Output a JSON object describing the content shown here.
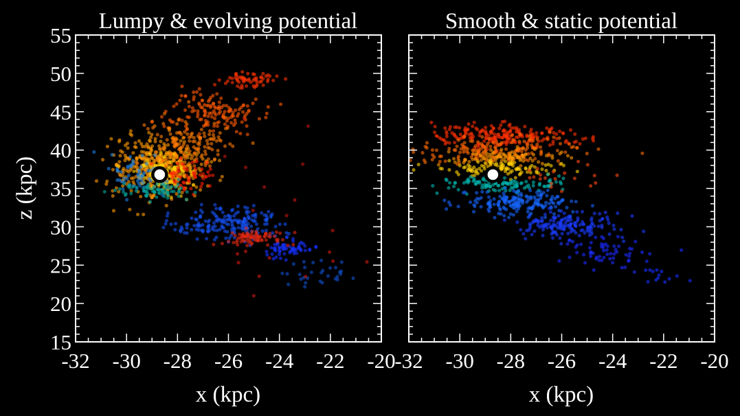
{
  "chart_data": [
    {
      "type": "scatter",
      "title": "Lumpy & evolving potential",
      "xlabel": "x (kpc)",
      "ylabel": "z (kpc)",
      "xlim": [
        -32,
        -20
      ],
      "ylim": [
        15,
        55
      ],
      "x_ticks": [
        "-32",
        "-30",
        "-28",
        "-26",
        "-24",
        "-22",
        "-20"
      ],
      "y_ticks": [
        "15",
        "20",
        "25",
        "30",
        "35",
        "40",
        "45",
        "50",
        "55"
      ],
      "progenitor": {
        "x": -28.7,
        "z": 36.8
      },
      "clumps": [
        {
          "color": "#ff9a00",
          "cx": -28.8,
          "cz": 37.8,
          "sx": 0.9,
          "sz": 2.0,
          "n": 380
        },
        {
          "color": "#ffd100",
          "cx": -28.6,
          "cz": 37.2,
          "sx": 0.5,
          "sz": 1.0,
          "n": 150
        },
        {
          "color": "#ff7a00",
          "cx": -27.6,
          "cz": 41.0,
          "sx": 0.8,
          "sz": 1.8,
          "n": 150
        },
        {
          "color": "#ff5a00",
          "cx": -26.6,
          "cz": 44.8,
          "sx": 0.9,
          "sz": 1.4,
          "n": 140
        },
        {
          "color": "#ff3300",
          "cx": -25.2,
          "cz": 49.2,
          "sx": 0.5,
          "sz": 0.6,
          "n": 60
        },
        {
          "color": "#ff2000",
          "cx": -27.6,
          "cz": 36.5,
          "sx": 0.5,
          "sz": 1.2,
          "n": 60
        },
        {
          "color": "#1e7fe0",
          "cx": -29.6,
          "cz": 37.0,
          "sx": 0.6,
          "sz": 1.2,
          "n": 60
        },
        {
          "color": "#00a8a0",
          "cx": -28.7,
          "cz": 34.6,
          "sx": 0.8,
          "sz": 0.5,
          "n": 70
        },
        {
          "color": "#1550f0",
          "cx": -26.0,
          "cz": 30.5,
          "sx": 1.1,
          "sz": 1.0,
          "n": 200
        },
        {
          "color": "#e02810",
          "cx": -25.0,
          "cz": 28.7,
          "sx": 0.6,
          "sz": 0.5,
          "n": 80
        },
        {
          "color": "#1530ff",
          "cx": -23.6,
          "cz": 27.0,
          "sx": 0.6,
          "sz": 0.5,
          "n": 60
        },
        {
          "color": "#1050d0",
          "cx": -22.6,
          "cz": 24.0,
          "sx": 0.7,
          "sz": 0.8,
          "n": 30
        },
        {
          "color": "#d01a10",
          "cx": -23.5,
          "cz": 26.0,
          "sx": 1.8,
          "sz": 2.5,
          "n": 14
        },
        {
          "color": "#c01810",
          "cx": -25.0,
          "cz": 40.0,
          "sx": 1.5,
          "sz": 5.0,
          "n": 8
        }
      ]
    },
    {
      "type": "scatter",
      "title": "Smooth & static potential",
      "xlabel": "x (kpc)",
      "ylabel": "",
      "xlim": [
        -32,
        -20
      ],
      "ylim": [
        15,
        55
      ],
      "x_ticks": [
        "-32",
        "-30",
        "-28",
        "-26",
        "-24",
        "-22",
        "-20"
      ],
      "progenitor": {
        "x": -28.7,
        "z": 36.8
      },
      "clumps": [
        {
          "color": "#ff3000",
          "cx": -28.5,
          "cz": 41.8,
          "sx": 1.4,
          "sz": 0.8,
          "n": 220
        },
        {
          "color": "#ff6a00",
          "cx": -28.5,
          "cz": 40.0,
          "sx": 1.6,
          "sz": 0.7,
          "n": 160
        },
        {
          "color": "#ff9800",
          "cx": -28.3,
          "cz": 39.0,
          "sx": 1.3,
          "sz": 0.5,
          "n": 90
        },
        {
          "color": "#ffd000",
          "cx": -28.3,
          "cz": 37.6,
          "sx": 1.2,
          "sz": 0.5,
          "n": 110
        },
        {
          "color": "#00b8b0",
          "cx": -28.5,
          "cz": 35.6,
          "sx": 1.2,
          "sz": 0.5,
          "n": 110
        },
        {
          "color": "#1566ff",
          "cx": -27.6,
          "cz": 33.2,
          "sx": 1.2,
          "sz": 0.8,
          "n": 180
        },
        {
          "color": "#1a3cff",
          "cx": -25.8,
          "cz": 30.3,
          "sx": 1.0,
          "sz": 0.9,
          "n": 160
        },
        {
          "color": "#1a2cff",
          "cx": -24.2,
          "cz": 26.6,
          "sx": 0.9,
          "sz": 0.9,
          "n": 60
        },
        {
          "color": "#ff4a10",
          "cx": -26.0,
          "cz": 36.5,
          "sx": 0.8,
          "sz": 1.2,
          "n": 20
        },
        {
          "color": "#1530ff",
          "cx": -22.5,
          "cz": 23.8,
          "sx": 0.8,
          "sz": 0.8,
          "n": 14
        }
      ]
    }
  ]
}
